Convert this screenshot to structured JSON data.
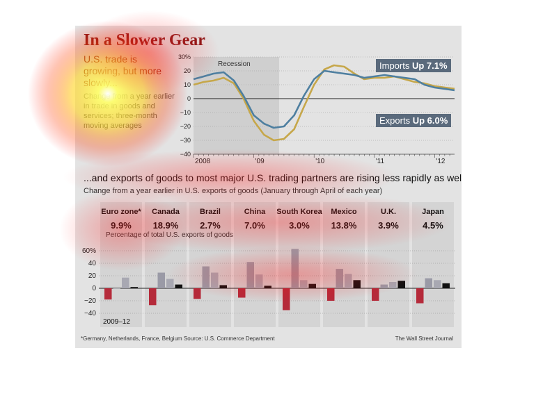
{
  "top": {
    "title": "In a Slower Gear",
    "subtitle": "U.S. trade is growing, but more slowly...",
    "description": "Change from a year earlier in trade in goods and services; three-month moving averages",
    "recession_label": "Recession",
    "imports_callout": {
      "prefix": "Imports ",
      "value": "Up 7.1%"
    },
    "exports_callout": {
      "prefix": "Exports ",
      "value": "Up 6.0%"
    }
  },
  "bottom": {
    "headline": "...and exports of goods to most major U.S. trading partners are rising less rapidly as well.",
    "subtitle": "Change from a year earlier in U.S. exports of goods (January through April of each year)",
    "share_note": "Percentage of total U.S. exports of goods",
    "axis_note": "2009–12"
  },
  "footnote": "*Germany, Netherlands, France, Belgium     Source: U.S. Commerce Department",
  "credit": "The Wall Street Journal",
  "colors": {
    "imports": "#c6a74a",
    "exports": "#4e7fa0",
    "bar_2009": "#b52a3a",
    "bar_2010": "#9a9aa6",
    "bar_2011": "#a8a8b2",
    "bar_2012": "#111111",
    "title": "#8b1a1a"
  },
  "chart_data": [
    {
      "type": "line",
      "x_ticks": [
        "2008",
        "'09",
        "'10",
        "'11",
        "'12"
      ],
      "y_ticks": [
        "30%",
        "20",
        "10",
        "0",
        "−10",
        "−20",
        "−30",
        "−40"
      ],
      "ylim": [
        -40,
        30
      ],
      "xlim": [
        2008.0,
        2012.33
      ],
      "recession": [
        2008.0,
        2009.42
      ],
      "series": [
        {
          "name": "Imports",
          "x": [
            2008.0,
            2008.17,
            2008.33,
            2008.5,
            2008.67,
            2008.83,
            2009.0,
            2009.17,
            2009.33,
            2009.5,
            2009.67,
            2009.83,
            2010.0,
            2010.17,
            2010.33,
            2010.5,
            2010.67,
            2010.83,
            2011.0,
            2011.17,
            2011.33,
            2011.5,
            2011.67,
            2011.83,
            2012.0,
            2012.17,
            2012.33
          ],
          "values": [
            10,
            12,
            13,
            15,
            11,
            0,
            -16,
            -26,
            -30,
            -29,
            -22,
            -6,
            10,
            21,
            24,
            23,
            18,
            14,
            15,
            15,
            16,
            14,
            12,
            11,
            9,
            8,
            7.1
          ]
        },
        {
          "name": "Exports",
          "x": [
            2008.0,
            2008.17,
            2008.33,
            2008.5,
            2008.67,
            2008.83,
            2009.0,
            2009.17,
            2009.33,
            2009.5,
            2009.67,
            2009.83,
            2010.0,
            2010.17,
            2010.33,
            2010.5,
            2010.67,
            2010.83,
            2011.0,
            2011.17,
            2011.33,
            2011.5,
            2011.67,
            2011.83,
            2012.0,
            2012.17,
            2012.33
          ],
          "values": [
            14,
            16,
            18,
            19,
            13,
            2,
            -12,
            -18,
            -21,
            -20,
            -12,
            2,
            14,
            20,
            19,
            18,
            17,
            15,
            16,
            17,
            16,
            15,
            14,
            10,
            8,
            7,
            6.0
          ]
        }
      ]
    },
    {
      "type": "bar",
      "categories": [
        "Euro zone*",
        "Canada",
        "Brazil",
        "China",
        "South Korea",
        "Mexico",
        "U.K.",
        "Japan"
      ],
      "shares": [
        "9.9%",
        "18.9%",
        "2.7%",
        "7.0%",
        "3.0%",
        "13.8%",
        "3.9%",
        "4.5%"
      ],
      "y_ticks": [
        "60%",
        "40",
        "20",
        "0",
        "−20",
        "−40"
      ],
      "ylim": [
        -40,
        60
      ],
      "series": [
        {
          "values": [
            -18,
            -27,
            -17,
            -15,
            -35,
            -20,
            -20,
            -24
          ]
        },
        {
          "values": [
            0,
            25,
            35,
            42,
            63,
            31,
            6,
            16
          ]
        },
        {
          "values": [
            17,
            15,
            25,
            22,
            13,
            23,
            10,
            13
          ]
        },
        {
          "values": [
            2,
            6,
            5,
            4,
            7,
            13,
            12,
            8
          ]
        }
      ]
    }
  ]
}
